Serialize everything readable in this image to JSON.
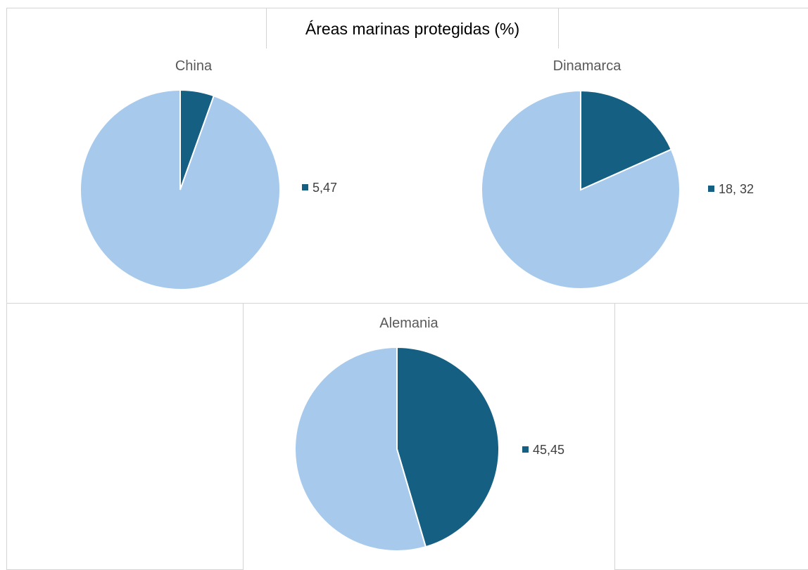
{
  "title": "Áreas marinas protegidas (%)",
  "colors": {
    "highlight": "#155F82",
    "rest": "#A7CAEC",
    "border": "#ffffff"
  },
  "chart_data": [
    {
      "type": "pie",
      "title": "China",
      "values": [
        5.47,
        94.53
      ],
      "legend": [
        "5,47"
      ]
    },
    {
      "type": "pie",
      "title": "Dinamarca",
      "values": [
        18.32,
        81.68
      ],
      "legend": [
        "18, 32"
      ]
    },
    {
      "type": "pie",
      "title": "Alemania",
      "values": [
        45.45,
        54.55
      ],
      "legend": [
        "45,45"
      ]
    }
  ]
}
